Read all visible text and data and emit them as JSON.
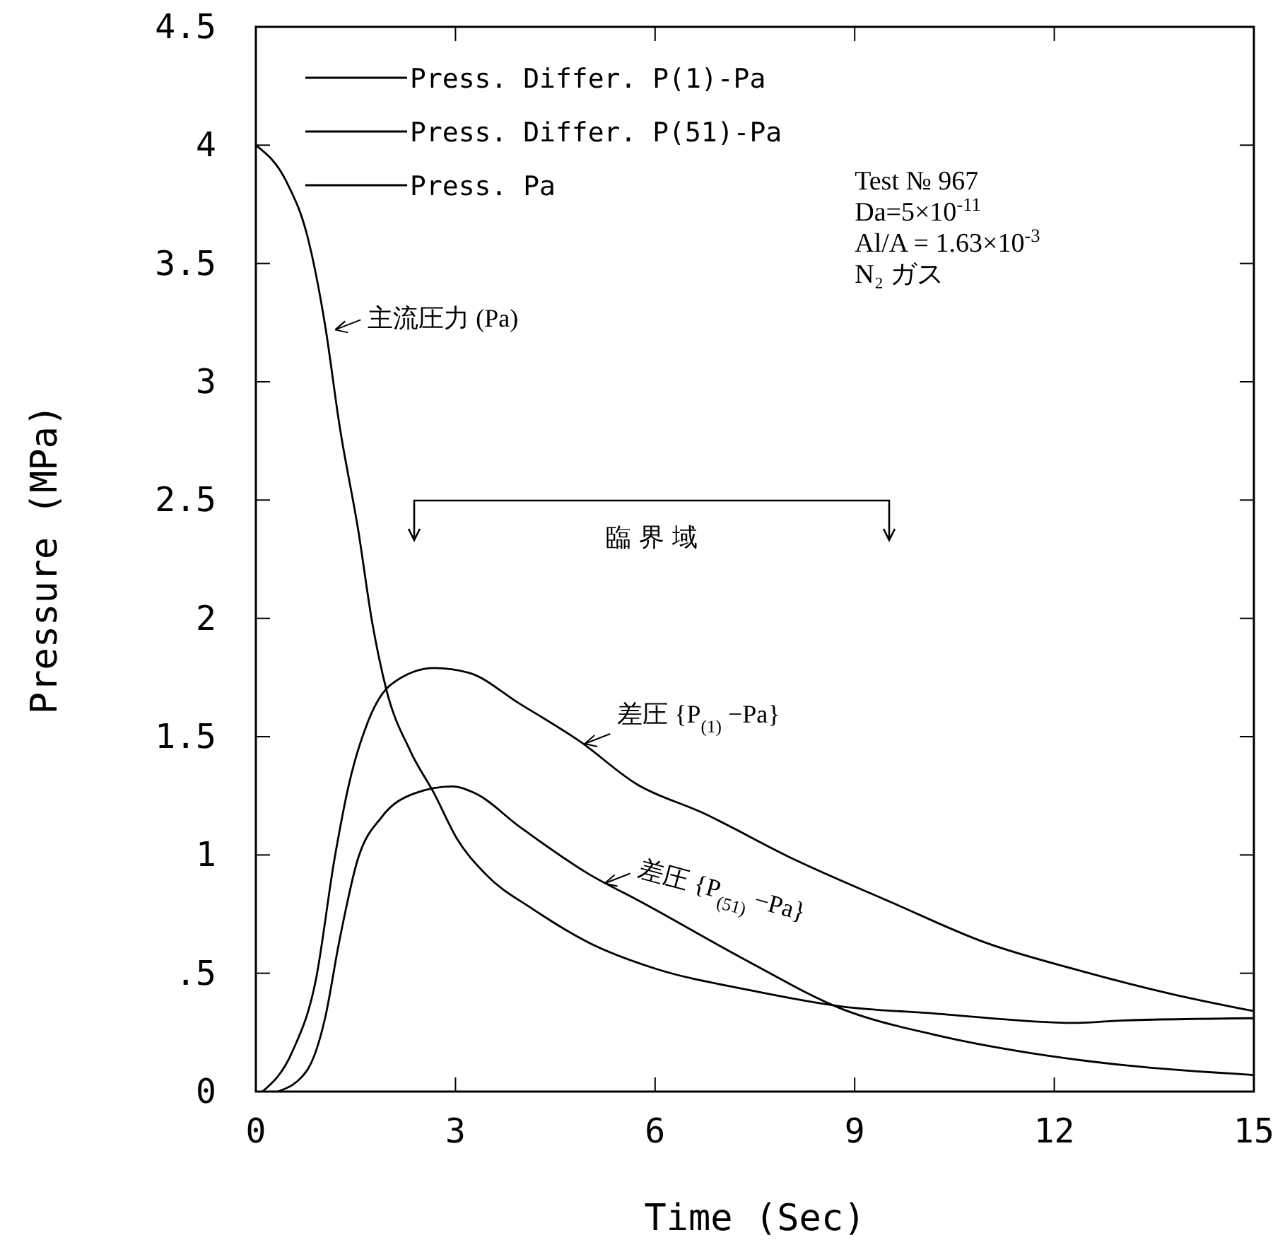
{
  "chart_data": {
    "type": "line",
    "xlabel": "Time (Sec)",
    "ylabel": "Pressure (MPa)",
    "xlim": [
      0,
      15
    ],
    "xticks": [
      0,
      3,
      6,
      9,
      12,
      15
    ],
    "ylim": [
      0,
      4.5
    ],
    "yticks": [
      0,
      {
        "value": 0.5,
        "label": ".5"
      },
      1,
      1.5,
      2,
      2.5,
      3,
      3.5,
      4,
      4.5
    ],
    "grid": false,
    "legend": "top left",
    "line_style": "solid",
    "marker": "none",
    "series": [
      {
        "name": "Press. Differ. P(1)-Pa",
        "color": "#000000",
        "x": [
          0.1,
          0.55,
          0.9,
          1.18,
          1.4,
          1.68,
          2.03,
          2.68,
          3.2,
          3.96,
          4.87,
          5.72,
          6.7,
          8.1,
          9.55,
          10.96,
          12.4,
          13.8,
          15
        ],
        "values": [
          0,
          0.17,
          0.47,
          0.98,
          1.3,
          1.56,
          1.72,
          1.79,
          1.77,
          1.64,
          1.48,
          1.3,
          1.18,
          0.98,
          0.8,
          0.63,
          0.51,
          0.41,
          0.34
        ]
      },
      {
        "name": "Press. Differ. P(51)-Pa",
        "color": "#000000",
        "x": [
          0.33,
          0.77,
          1.04,
          1.25,
          1.53,
          1.89,
          2.38,
          2.95,
          3.3,
          3.96,
          5.0,
          5.8,
          7.4,
          8.8,
          10.2,
          11.7,
          13.1,
          15
        ],
        "values": [
          0,
          0.09,
          0.31,
          0.63,
          0.98,
          1.16,
          1.26,
          1.29,
          1.26,
          1.12,
          0.92,
          0.8,
          0.55,
          0.35,
          0.24,
          0.16,
          0.11,
          0.07
        ]
      },
      {
        "name": "Press. Pa",
        "color": "#000000",
        "x": [
          0,
          0.47,
          0.77,
          1.04,
          1.26,
          1.54,
          1.75,
          1.96,
          2.32,
          2.68,
          3.02,
          3.45,
          4.17,
          5.0,
          6.0,
          7.4,
          8.8,
          10.2,
          12.3,
          13,
          15
        ],
        "values": [
          4,
          3.84,
          3.62,
          3.24,
          2.81,
          2.37,
          1.98,
          1.7,
          1.44,
          1.26,
          1.07,
          0.92,
          0.77,
          0.63,
          0.52,
          0.43,
          0.36,
          0.33,
          0.29,
          0.3,
          0.31
        ]
      }
    ],
    "annotations": [
      "臨 界 域",
      {
        "text": "主流圧力 (Pa)",
        "x": 1.15,
        "y": 3.22
      },
      {
        "text": "差圧 {P$_{(1)}$ −Pa}",
        "x": 4.9,
        "y": 1.47
      },
      {
        "text": "差圧 {P$_{(51)}$ −Pa}",
        "x": 5.2,
        "y": 0.88
      },
      "Test № 967",
      "Da=5×10$^{-11}$",
      "Al/A = 1.63×10$^{-3}$",
      "N₂ ガス"
    ]
  }
}
